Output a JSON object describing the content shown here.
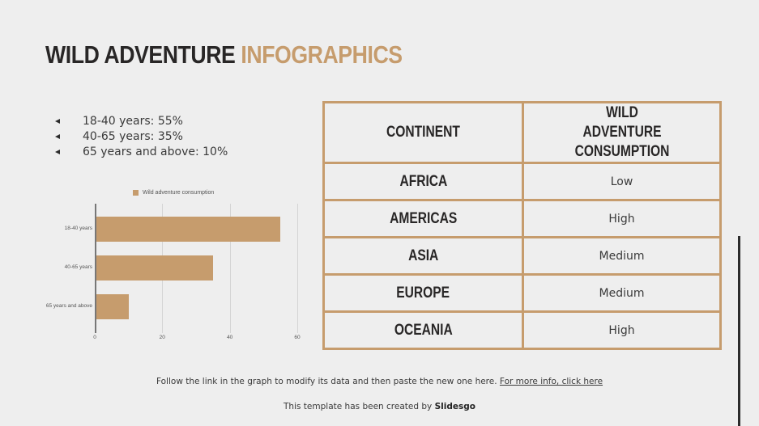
{
  "title": {
    "part1": "WILD ADVENTURE",
    "part2": "INFOGRAPHICS"
  },
  "colors": {
    "accent": "#c69c6d",
    "dark": "#282626",
    "background": "#eeeeee"
  },
  "bullets": [
    {
      "icon": "triangle-left-icon",
      "text": "18-40 years: 55%"
    },
    {
      "icon": "triangle-left-icon",
      "text": "40-65 years: 35%"
    },
    {
      "icon": "triangle-left-icon",
      "text": "65 years and above: 10%"
    }
  ],
  "chart_data": {
    "type": "bar",
    "orientation": "horizontal",
    "title": "",
    "categories": [
      "18-40 years",
      "40-65 years",
      "65 years and above"
    ],
    "series": [
      {
        "name": "Wild adventure consumption",
        "values": [
          55,
          35,
          10
        ],
        "color": "#c69c6d"
      }
    ],
    "xlabel": "",
    "ylabel": "",
    "xlim": [
      0,
      60
    ],
    "xticks": [
      "0",
      "20",
      "40",
      "60"
    ],
    "grid": true,
    "legend_position": "top"
  },
  "table": {
    "headers": [
      "CONTINENT",
      "WILD ADVENTURE CONSUMPTION"
    ],
    "rows": [
      {
        "continent": "AFRICA",
        "consumption": "Low"
      },
      {
        "continent": "AMERICAS",
        "consumption": "High"
      },
      {
        "continent": "ASIA",
        "consumption": "Medium"
      },
      {
        "continent": "EUROPE",
        "consumption": "Medium"
      },
      {
        "continent": "OCEANIA",
        "consumption": "High"
      }
    ]
  },
  "footer": {
    "note": "Follow the link in the graph to modify its data and then paste the new one here.",
    "link": "For more info, click here",
    "credit_prefix": "This template has been created by",
    "credit_brand": "Slidesgo"
  }
}
